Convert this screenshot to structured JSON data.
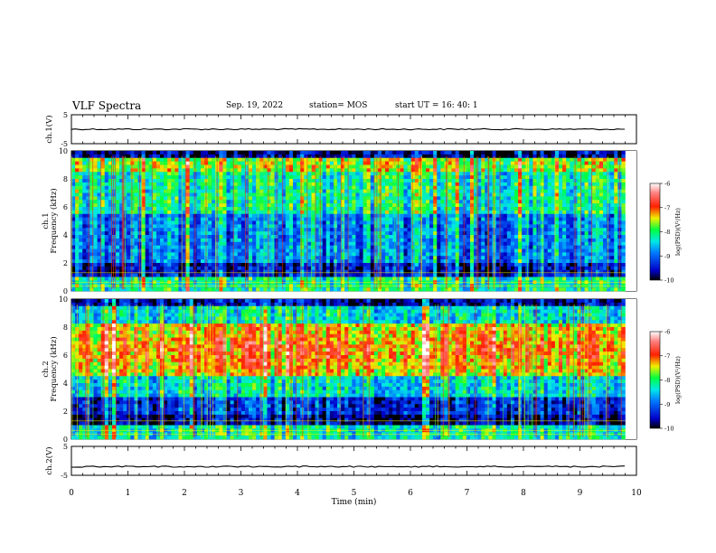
{
  "header": {
    "title": "VLF Spectra",
    "date": "Sep. 19, 2022",
    "station": "station= MOS",
    "start": "start  UT =   16: 40: 1"
  },
  "chart_data": [
    {
      "type": "line",
      "panel": "ch1-voltage",
      "ylabel": "ch.1(V)",
      "yticks": [
        5,
        -5
      ],
      "ylim": [
        -5,
        5
      ],
      "xlim": [
        0,
        10
      ],
      "trace_level": 0
    },
    {
      "type": "heatmap",
      "panel": "ch1-spectrogram",
      "ylabel": "ch.1\nFrequency (kHz)",
      "ylabel_line1": "ch.1",
      "ylabel_line2": "Frequency (kHz)",
      "yticks": [
        0,
        2,
        4,
        6,
        8,
        10
      ],
      "ylim": [
        0,
        10
      ],
      "xlim": [
        0,
        10
      ],
      "data_end_min": 9.8,
      "colorbar": {
        "label": "log(PSD)(V²/Hz)",
        "ticks": [
          -6,
          -7,
          -8,
          -9,
          -10
        ],
        "range": [
          -10,
          -6
        ]
      }
    },
    {
      "type": "heatmap",
      "panel": "ch2-spectrogram",
      "ylabel_line1": "ch.2",
      "ylabel_line2": "Frequency (kHz)",
      "yticks": [
        0,
        2,
        4,
        6,
        8,
        10
      ],
      "ylim": [
        0,
        10
      ],
      "xlim": [
        0,
        10
      ],
      "data_end_min": 9.8,
      "colorbar": {
        "label": "log(PSD)(V²/Hz)",
        "ticks": [
          -6,
          -7,
          -8,
          -9,
          -10
        ],
        "range": [
          -10,
          -6
        ]
      }
    },
    {
      "type": "line",
      "panel": "ch2-voltage",
      "ylabel": "ch.2(V)",
      "yticks": [
        5,
        -5
      ],
      "ylim": [
        -5,
        5
      ],
      "xlim": [
        0,
        10
      ],
      "trace_level": -2
    }
  ],
  "xaxis": {
    "label": "Time  (min)",
    "ticks": [
      0,
      1,
      2,
      3,
      4,
      5,
      6,
      7,
      8,
      9,
      10
    ]
  }
}
